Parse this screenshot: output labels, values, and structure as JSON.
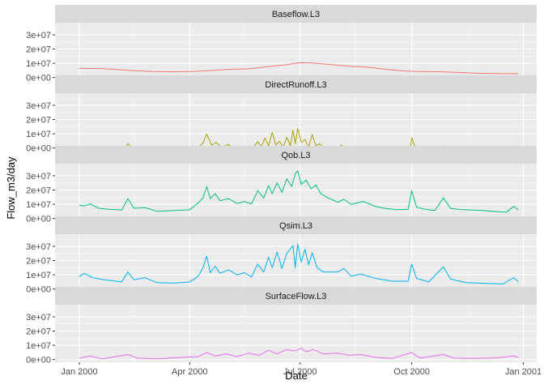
{
  "chart_data": {
    "type": "line",
    "layout": "faceted-vertical",
    "xlabel": "Date",
    "ylabel": "Flow_m3/day",
    "x_ticks": [
      "Jan 2000",
      "Apr 2000",
      "Jul 2000",
      "Oct 2000",
      "Jan 2001"
    ],
    "x_tick_dates": [
      "2000-01-01",
      "2000-04-01",
      "2000-07-01",
      "2000-10-01",
      "2001-01-01"
    ],
    "x_range": [
      "1999-12-12",
      "2001-01-12"
    ],
    "y_ticks": [
      "0e+00",
      "1e+07",
      "2e+07",
      "3e+07"
    ],
    "y_tick_values": [
      0,
      10000000,
      20000000,
      30000000
    ],
    "ylim": [
      -1900000,
      38500000
    ],
    "grid": true,
    "legend": "none",
    "series": [
      {
        "name": "Baseflow.L3",
        "color": "#F8766D",
        "points": [
          [
            "2000-01-01",
            6500000
          ],
          [
            "2000-01-20",
            6300000
          ],
          [
            "2000-02-10",
            5100000
          ],
          [
            "2000-03-01",
            4200000
          ],
          [
            "2000-03-20",
            4000000
          ],
          [
            "2000-04-05",
            4300000
          ],
          [
            "2000-04-20",
            5000000
          ],
          [
            "2000-05-05",
            5800000
          ],
          [
            "2000-05-20",
            6100000
          ],
          [
            "2000-06-05",
            7600000
          ],
          [
            "2000-06-20",
            9000000
          ],
          [
            "2000-07-01",
            10400000
          ],
          [
            "2000-07-10",
            10300000
          ],
          [
            "2000-07-25",
            9200000
          ],
          [
            "2000-08-10",
            8000000
          ],
          [
            "2000-08-25",
            7300000
          ],
          [
            "2000-09-10",
            5700000
          ],
          [
            "2000-09-25",
            4600000
          ],
          [
            "2000-10-10",
            4200000
          ],
          [
            "2000-10-25",
            4000000
          ],
          [
            "2000-11-10",
            3500000
          ],
          [
            "2000-11-25",
            3000000
          ],
          [
            "2000-12-10",
            2800000
          ],
          [
            "2000-12-28",
            2700000
          ]
        ]
      },
      {
        "name": "DirectRunoff.L3",
        "color": "#A3A500",
        "points": [
          [
            "2000-01-01",
            0
          ],
          [
            "2000-01-03",
            1000000
          ],
          [
            "2000-01-06",
            0
          ],
          [
            "2000-02-08",
            0
          ],
          [
            "2000-02-10",
            3200000
          ],
          [
            "2000-02-13",
            0
          ],
          [
            "2000-03-18",
            0
          ],
          [
            "2000-03-20",
            1200000
          ],
          [
            "2000-03-22",
            0
          ],
          [
            "2000-04-08",
            0
          ],
          [
            "2000-04-12",
            3500000
          ],
          [
            "2000-04-15",
            9800000
          ],
          [
            "2000-04-19",
            2000000
          ],
          [
            "2000-04-23",
            4000000
          ],
          [
            "2000-04-27",
            500000
          ],
          [
            "2000-05-03",
            2500000
          ],
          [
            "2000-05-07",
            0
          ],
          [
            "2000-05-18",
            0
          ],
          [
            "2000-05-20",
            1500000
          ],
          [
            "2000-05-23",
            0
          ],
          [
            "2000-05-27",
            4500000
          ],
          [
            "2000-05-30",
            1000000
          ],
          [
            "2000-06-02",
            7000000
          ],
          [
            "2000-06-05",
            1500000
          ],
          [
            "2000-06-08",
            11000000
          ],
          [
            "2000-06-11",
            2000000
          ],
          [
            "2000-06-14",
            4800000
          ],
          [
            "2000-06-17",
            500000
          ],
          [
            "2000-06-20",
            7500000
          ],
          [
            "2000-06-23",
            1500000
          ],
          [
            "2000-06-25",
            12500000
          ],
          [
            "2000-06-27",
            3000000
          ],
          [
            "2000-06-29",
            13500000
          ],
          [
            "2000-07-02",
            4000000
          ],
          [
            "2000-07-05",
            6000000
          ],
          [
            "2000-07-08",
            500000
          ],
          [
            "2000-07-11",
            9500000
          ],
          [
            "2000-07-14",
            1500000
          ],
          [
            "2000-07-17",
            3000000
          ],
          [
            "2000-07-21",
            300000
          ],
          [
            "2000-08-01",
            0
          ],
          [
            "2000-08-04",
            2000000
          ],
          [
            "2000-08-07",
            0
          ],
          [
            "2000-08-20",
            0
          ],
          [
            "2000-08-24",
            1200000
          ],
          [
            "2000-08-27",
            0
          ],
          [
            "2000-09-30",
            0
          ],
          [
            "2000-10-01",
            7200000
          ],
          [
            "2000-10-04",
            0
          ],
          [
            "2000-10-25",
            0
          ],
          [
            "2000-10-27",
            1500000
          ],
          [
            "2000-10-30",
            0
          ],
          [
            "2000-12-25",
            0
          ],
          [
            "2000-12-27",
            1000000
          ],
          [
            "2000-12-30",
            0
          ]
        ]
      },
      {
        "name": "Qob.L3",
        "color": "#00BF7D",
        "points": [
          [
            "2000-01-01",
            9500000
          ],
          [
            "2000-01-05",
            8800000
          ],
          [
            "2000-01-10",
            10300000
          ],
          [
            "2000-01-17",
            7200000
          ],
          [
            "2000-01-25",
            6500000
          ],
          [
            "2000-02-05",
            6000000
          ],
          [
            "2000-02-10",
            14000000
          ],
          [
            "2000-02-15",
            7200000
          ],
          [
            "2000-02-24",
            7700000
          ],
          [
            "2000-03-05",
            5100000
          ],
          [
            "2000-03-20",
            5600000
          ],
          [
            "2000-04-01",
            6200000
          ],
          [
            "2000-04-08",
            11000000
          ],
          [
            "2000-04-12",
            14500000
          ],
          [
            "2000-04-15",
            22500000
          ],
          [
            "2000-04-18",
            14000000
          ],
          [
            "2000-04-22",
            17500000
          ],
          [
            "2000-04-26",
            12500000
          ],
          [
            "2000-05-03",
            14000000
          ],
          [
            "2000-05-10",
            10500000
          ],
          [
            "2000-05-16",
            12000000
          ],
          [
            "2000-05-22",
            10300000
          ],
          [
            "2000-05-27",
            19500000
          ],
          [
            "2000-06-01",
            14500000
          ],
          [
            "2000-06-05",
            23000000
          ],
          [
            "2000-06-08",
            17500000
          ],
          [
            "2000-06-12",
            25000000
          ],
          [
            "2000-06-16",
            18500000
          ],
          [
            "2000-06-20",
            28000000
          ],
          [
            "2000-06-24",
            22500000
          ],
          [
            "2000-06-27",
            31500000
          ],
          [
            "2000-06-29",
            33500000
          ],
          [
            "2000-07-02",
            24000000
          ],
          [
            "2000-07-06",
            27000000
          ],
          [
            "2000-07-10",
            21000000
          ],
          [
            "2000-07-14",
            23500000
          ],
          [
            "2000-07-18",
            17500000
          ],
          [
            "2000-07-24",
            14500000
          ],
          [
            "2000-08-01",
            11500000
          ],
          [
            "2000-08-06",
            13500000
          ],
          [
            "2000-08-12",
            10000000
          ],
          [
            "2000-08-22",
            12000000
          ],
          [
            "2000-09-01",
            8500000
          ],
          [
            "2000-09-10",
            7000000
          ],
          [
            "2000-09-20",
            6200000
          ],
          [
            "2000-09-28",
            6500000
          ],
          [
            "2000-10-01",
            19500000
          ],
          [
            "2000-10-05",
            8000000
          ],
          [
            "2000-10-12",
            6500000
          ],
          [
            "2000-10-20",
            5600000
          ],
          [
            "2000-10-27",
            14500000
          ],
          [
            "2000-11-02",
            7200000
          ],
          [
            "2000-11-10",
            6300000
          ],
          [
            "2000-11-20",
            6000000
          ],
          [
            "2000-12-01",
            5500000
          ],
          [
            "2000-12-10",
            4800000
          ],
          [
            "2000-12-18",
            4500000
          ],
          [
            "2000-12-24",
            8500000
          ],
          [
            "2000-12-28",
            6000000
          ]
        ]
      },
      {
        "name": "Qsim.L3",
        "color": "#00B0F6",
        "points": [
          [
            "2000-01-01",
            8800000
          ],
          [
            "2000-01-05",
            11000000
          ],
          [
            "2000-01-12",
            8000000
          ],
          [
            "2000-01-22",
            6500000
          ],
          [
            "2000-02-05",
            5000000
          ],
          [
            "2000-02-10",
            12000000
          ],
          [
            "2000-02-15",
            6500000
          ],
          [
            "2000-02-24",
            8000000
          ],
          [
            "2000-03-05",
            4500000
          ],
          [
            "2000-03-20",
            4200000
          ],
          [
            "2000-04-01",
            5000000
          ],
          [
            "2000-04-08",
            9000000
          ],
          [
            "2000-04-12",
            15000000
          ],
          [
            "2000-04-15",
            23000000
          ],
          [
            "2000-04-18",
            11500000
          ],
          [
            "2000-04-22",
            16000000
          ],
          [
            "2000-04-26",
            11000000
          ],
          [
            "2000-05-03",
            13500000
          ],
          [
            "2000-05-10",
            10000000
          ],
          [
            "2000-05-16",
            11500000
          ],
          [
            "2000-05-22",
            8500000
          ],
          [
            "2000-05-27",
            17500000
          ],
          [
            "2000-06-01",
            12000000
          ],
          [
            "2000-06-05",
            22500000
          ],
          [
            "2000-06-08",
            15000000
          ],
          [
            "2000-06-12",
            26000000
          ],
          [
            "2000-06-16",
            14500000
          ],
          [
            "2000-06-20",
            25000000
          ],
          [
            "2000-06-25",
            30500000
          ],
          [
            "2000-06-27",
            15000000
          ],
          [
            "2000-06-29",
            31500000
          ],
          [
            "2000-07-02",
            19000000
          ],
          [
            "2000-07-05",
            28000000
          ],
          [
            "2000-07-08",
            17000000
          ],
          [
            "2000-07-11",
            25500000
          ],
          [
            "2000-07-15",
            15000000
          ],
          [
            "2000-07-20",
            12000000
          ],
          [
            "2000-08-01",
            12000000
          ],
          [
            "2000-08-06",
            14500000
          ],
          [
            "2000-08-12",
            9000000
          ],
          [
            "2000-08-20",
            10500000
          ],
          [
            "2000-09-01",
            7500000
          ],
          [
            "2000-09-15",
            5500000
          ],
          [
            "2000-09-28",
            5500000
          ],
          [
            "2000-10-01",
            17500000
          ],
          [
            "2000-10-05",
            7500000
          ],
          [
            "2000-10-15",
            5000000
          ],
          [
            "2000-10-27",
            15500000
          ],
          [
            "2000-11-02",
            7000000
          ],
          [
            "2000-11-15",
            4500000
          ],
          [
            "2000-12-01",
            4000000
          ],
          [
            "2000-12-15",
            3500000
          ],
          [
            "2000-12-24",
            8000000
          ],
          [
            "2000-12-28",
            5000000
          ]
        ]
      },
      {
        "name": "SurfaceFlow.L3",
        "color": "#E76BF3",
        "points": [
          [
            "2000-01-01",
            1000000
          ],
          [
            "2000-01-10",
            2500000
          ],
          [
            "2000-01-20",
            500000
          ],
          [
            "2000-02-10",
            3500000
          ],
          [
            "2000-02-18",
            1000000
          ],
          [
            "2000-03-05",
            500000
          ],
          [
            "2000-03-25",
            1500000
          ],
          [
            "2000-04-08",
            2000000
          ],
          [
            "2000-04-15",
            5000000
          ],
          [
            "2000-04-22",
            2500000
          ],
          [
            "2000-05-01",
            4000000
          ],
          [
            "2000-05-10",
            2000000
          ],
          [
            "2000-05-20",
            4500000
          ],
          [
            "2000-05-28",
            3000000
          ],
          [
            "2000-06-05",
            6500000
          ],
          [
            "2000-06-12",
            4000000
          ],
          [
            "2000-06-20",
            7000000
          ],
          [
            "2000-06-27",
            6000000
          ],
          [
            "2000-07-02",
            8000000
          ],
          [
            "2000-07-06",
            5500000
          ],
          [
            "2000-07-12",
            7000000
          ],
          [
            "2000-07-20",
            4000000
          ],
          [
            "2000-08-01",
            4500000
          ],
          [
            "2000-08-10",
            3000000
          ],
          [
            "2000-08-20",
            3500000
          ],
          [
            "2000-09-01",
            1500000
          ],
          [
            "2000-09-15",
            800000
          ],
          [
            "2000-10-01",
            5000000
          ],
          [
            "2000-10-08",
            1000000
          ],
          [
            "2000-10-27",
            3500000
          ],
          [
            "2000-11-05",
            1000000
          ],
          [
            "2000-11-20",
            800000
          ],
          [
            "2000-12-10",
            1200000
          ],
          [
            "2000-12-24",
            2500000
          ],
          [
            "2000-12-28",
            1500000
          ]
        ]
      }
    ]
  }
}
